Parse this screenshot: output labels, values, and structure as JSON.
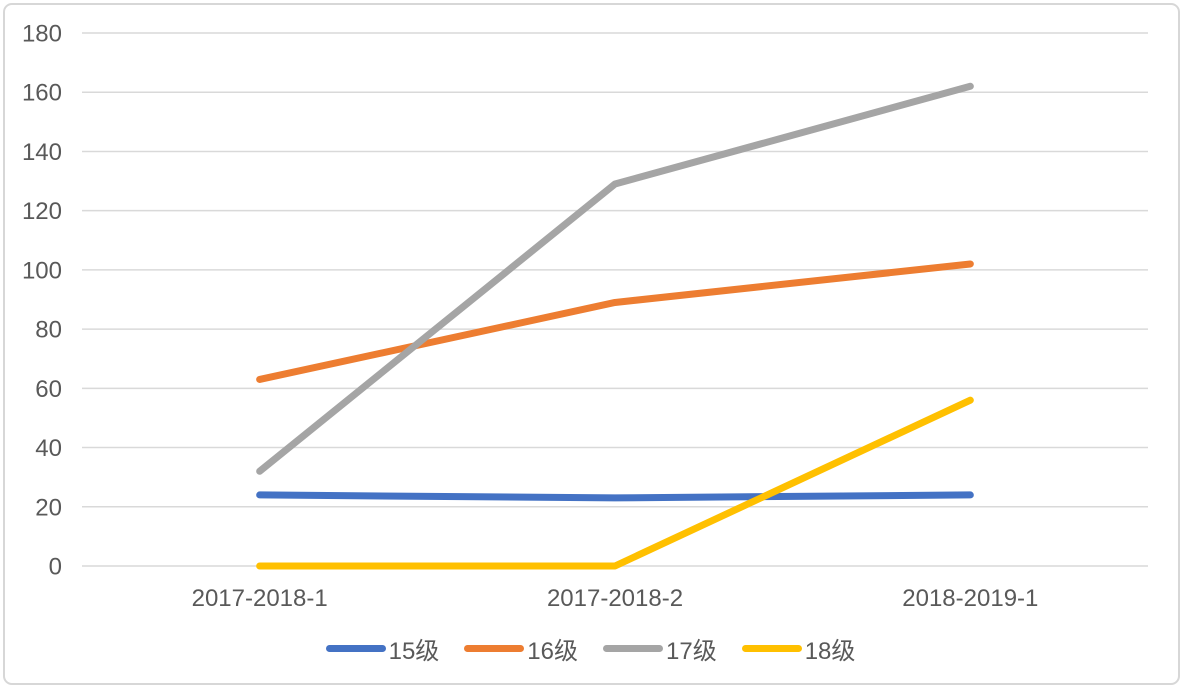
{
  "chart_data": {
    "type": "line",
    "title": "",
    "categories": [
      "2017-2018-1",
      "2017-2018-2",
      "2018-2019-1"
    ],
    "series": [
      {
        "name": "15级",
        "color": "#4472C4",
        "values": [
          24,
          23,
          24
        ]
      },
      {
        "name": "16级",
        "color": "#ED7D31",
        "values": [
          63,
          89,
          102
        ]
      },
      {
        "name": "17级",
        "color": "#A5A5A5",
        "values": [
          32,
          129,
          162
        ]
      },
      {
        "name": "18级",
        "color": "#FFC000",
        "values": [
          0,
          0,
          56
        ]
      }
    ],
    "y_axis": {
      "min": 0,
      "max": 180,
      "step": 20,
      "tick_labels": [
        "0",
        "20",
        "40",
        "60",
        "80",
        "100",
        "120",
        "140",
        "160",
        "180"
      ]
    },
    "x_axis": {
      "tick_labels": [
        "2017-2018-1",
        "2017-2018-2",
        "2018-2019-1"
      ]
    },
    "grid": true,
    "legend_position": "bottom",
    "legend_entries": [
      "15级",
      "16级",
      "17级",
      "18级"
    ],
    "styles": {
      "text_color": "#595959",
      "gridline_color": "#D9D9D9",
      "border_color": "#D7D7D7",
      "background": "#FFFFFF",
      "line_width": 7
    }
  }
}
